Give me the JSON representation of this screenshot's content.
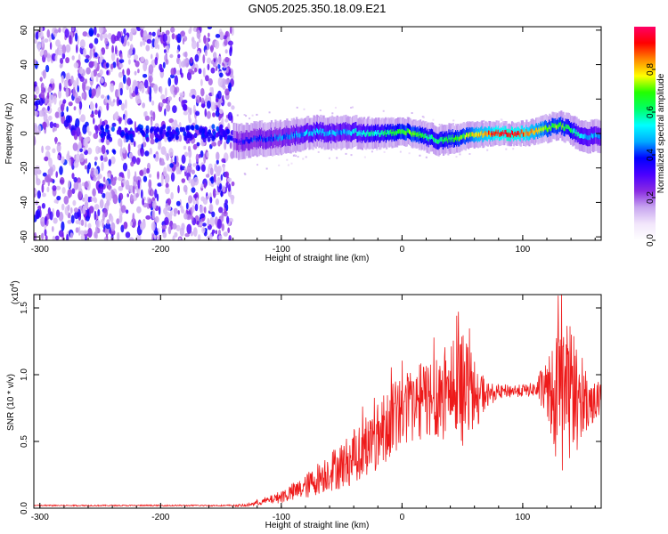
{
  "figure": {
    "title": "GN05.2025.350.18.09.E21"
  },
  "colors": {
    "snr_line": "#ee1a1a",
    "colormap": [
      "#ffffff",
      "#f2e6fb",
      "#c8a6f0",
      "#8a2be2",
      "#4b00ff",
      "#0000ff",
      "#00aaff",
      "#00ffff",
      "#00ff66",
      "#22ff00",
      "#ffff00",
      "#ff8800",
      "#ff0000",
      "#ff0066"
    ]
  },
  "chart_data": [
    {
      "type": "heatmap",
      "title": "",
      "xlabel": "Height of straight line (km)",
      "ylabel": "Frequency (Hz)",
      "xlim": [
        -305,
        165
      ],
      "ylim": [
        -62,
        62
      ],
      "xticks": [
        -300,
        -200,
        -100,
        0,
        100
      ],
      "yticks": [
        -60,
        -40,
        -20,
        0,
        20,
        40,
        60
      ],
      "colorbar": {
        "label": "Normalized spectral amplitude",
        "range": [
          0,
          1
        ],
        "ticks": [
          "0.0",
          "0.2",
          "0.4",
          "0.6",
          "0.8"
        ]
      },
      "noise_region_x": [
        -305,
        -140
      ],
      "ridge": {
        "x": [
          -140,
          -130,
          -120,
          -110,
          -100,
          -90,
          -80,
          -70,
          -60,
          -50,
          -40,
          -30,
          -20,
          -10,
          0,
          10,
          20,
          30,
          40,
          50,
          60,
          70,
          80,
          90,
          100,
          110,
          120,
          130,
          140,
          150,
          160,
          165
        ],
        "frequency": [
          -5,
          -4,
          -3,
          -3,
          -2,
          -1,
          0,
          1,
          0,
          1,
          1,
          0,
          0,
          0,
          1,
          0,
          -2,
          -4,
          -3,
          -2,
          -1,
          0,
          0,
          0,
          0,
          1,
          3,
          5,
          2,
          -2,
          -1,
          -2
        ],
        "amplitude": [
          0.3,
          0.4,
          0.38,
          0.4,
          0.42,
          0.45,
          0.48,
          0.5,
          0.48,
          0.45,
          0.5,
          0.55,
          0.58,
          0.62,
          0.68,
          0.7,
          0.6,
          0.62,
          0.65,
          0.7,
          0.78,
          0.85,
          0.92,
          0.95,
          0.9,
          0.8,
          0.7,
          0.72,
          0.6,
          0.5,
          0.45,
          0.45
        ]
      }
    },
    {
      "type": "line",
      "title": "",
      "xlabel": "Height of straight line (km)",
      "ylabel": "SNR (10 * v/v)",
      "y_multiplier": "(x10",
      "y_multiplier_exp": "4",
      "y_multiplier_close": ")",
      "xlim": [
        -305,
        165
      ],
      "ylim": [
        0,
        1.6
      ],
      "xticks": [
        -300,
        -200,
        -100,
        0,
        100
      ],
      "yticks": [
        "0.0",
        "0.5",
        "1.0",
        "1.5"
      ],
      "series": [
        {
          "x": [
            -305,
            -250,
            -200,
            -150,
            -130,
            -120,
            -110,
            -100,
            -90,
            -80,
            -70,
            -60,
            -50,
            -40,
            -30,
            -20,
            -10,
            0,
            10,
            20,
            30,
            40,
            50,
            60,
            70,
            80,
            90,
            100,
            110,
            120,
            130,
            140,
            150,
            160,
            165
          ],
          "y": [
            0.02,
            0.02,
            0.02,
            0.02,
            0.02,
            0.04,
            0.06,
            0.09,
            0.12,
            0.16,
            0.22,
            0.28,
            0.32,
            0.38,
            0.45,
            0.55,
            0.65,
            0.72,
            0.78,
            0.82,
            0.86,
            0.88,
            0.9,
            0.87,
            0.85,
            0.87,
            0.88,
            0.88,
            0.89,
            0.9,
            0.8,
            0.85,
            0.8,
            0.8,
            0.8
          ],
          "spread": [
            0.0,
            0.0,
            0.0,
            0.0,
            0.01,
            0.02,
            0.03,
            0.05,
            0.07,
            0.09,
            0.12,
            0.15,
            0.18,
            0.2,
            0.22,
            0.25,
            0.28,
            0.28,
            0.28,
            0.3,
            0.35,
            0.4,
            0.45,
            0.3,
            0.1,
            0.05,
            0.05,
            0.05,
            0.05,
            0.25,
            0.55,
            0.55,
            0.25,
            0.15,
            0.15
          ]
        }
      ]
    }
  ]
}
